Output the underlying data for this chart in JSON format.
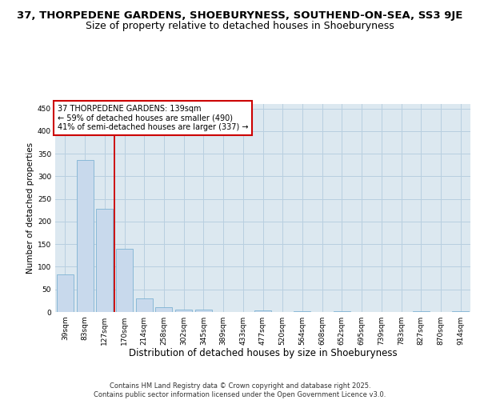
{
  "title1": "37, THORPEDENE GARDENS, SHOEBURYNESS, SOUTHEND-ON-SEA, SS3 9JE",
  "title2": "Size of property relative to detached houses in Shoeburyness",
  "xlabel": "Distribution of detached houses by size in Shoeburyness",
  "ylabel": "Number of detached properties",
  "categories": [
    "39sqm",
    "83sqm",
    "127sqm",
    "170sqm",
    "214sqm",
    "258sqm",
    "302sqm",
    "345sqm",
    "389sqm",
    "433sqm",
    "477sqm",
    "520sqm",
    "564sqm",
    "608sqm",
    "652sqm",
    "695sqm",
    "739sqm",
    "783sqm",
    "827sqm",
    "870sqm",
    "914sqm"
  ],
  "values": [
    84,
    337,
    228,
    139,
    30,
    10,
    5,
    5,
    0,
    0,
    3,
    0,
    2,
    0,
    2,
    0,
    0,
    0,
    2,
    0,
    2
  ],
  "bar_color": "#c8d9ec",
  "bar_edge_color": "#7fb3d3",
  "grid_color": "#b8cfe0",
  "bg_color": "#dce8f0",
  "annotation_text": "37 THORPEDENE GARDENS: 139sqm\n← 59% of detached houses are smaller (490)\n41% of semi-detached houses are larger (337) →",
  "annotation_box_color": "#ffffff",
  "annotation_border_color": "#cc0000",
  "red_line_x": 2.5,
  "ylim": [
    0,
    460
  ],
  "yticks": [
    0,
    50,
    100,
    150,
    200,
    250,
    300,
    350,
    400,
    450
  ],
  "footer": "Contains HM Land Registry data © Crown copyright and database right 2025.\nContains public sector information licensed under the Open Government Licence v3.0.",
  "title_fontsize": 9.5,
  "subtitle_fontsize": 9,
  "xlabel_fontsize": 8.5,
  "ylabel_fontsize": 7.5,
  "tick_fontsize": 6.5,
  "annotation_fontsize": 7,
  "footer_fontsize": 6
}
